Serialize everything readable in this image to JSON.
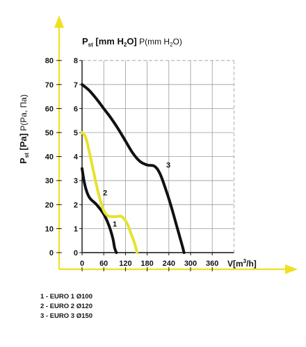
{
  "chart_data": {
    "type": "line",
    "title": "",
    "ylabel_left": "P st [Pa] P(Pa, Па)",
    "ylabel_right": "P st [mm H2O] P(mm H2O)",
    "xlabel": "V[m3/h]",
    "xlim": [
      0,
      420
    ],
    "ylim_pa": [
      0,
      80
    ],
    "ylim_mm": [
      0,
      8
    ],
    "x_ticks": [
      "0",
      "60",
      "120",
      "180",
      "240",
      "300",
      "360"
    ],
    "y_ticks_pa": [
      "0",
      "10",
      "20",
      "30",
      "40",
      "50",
      "60",
      "70",
      "80"
    ],
    "y_ticks_mm": [
      "0",
      "1",
      "2",
      "3",
      "4",
      "5",
      "6",
      "7",
      "8"
    ],
    "grid": true,
    "axis_color": "#f0e020",
    "series": [
      {
        "name": "1",
        "color": "#111111",
        "x": [
          0,
          8,
          20,
          40,
          60,
          75,
          85,
          90,
          95
        ],
        "y": [
          35,
          28,
          23,
          20,
          16,
          11,
          6,
          2,
          0
        ]
      },
      {
        "name": "2",
        "color": "#e6e22e",
        "x": [
          0,
          10,
          20,
          30,
          40,
          50,
          60,
          70,
          80,
          95,
          110,
          125,
          135,
          145,
          152
        ],
        "y": [
          50,
          48,
          42,
          35,
          28,
          22,
          17.5,
          15.5,
          15,
          15,
          15,
          12,
          8,
          4,
          0
        ]
      },
      {
        "name": "3",
        "color": "#111111",
        "x": [
          0,
          20,
          40,
          60,
          80,
          100,
          120,
          140,
          160,
          180,
          200,
          215,
          230,
          245,
          260,
          275,
          282
        ],
        "y": [
          70,
          67.5,
          64,
          60,
          56,
          51.5,
          46.5,
          41.5,
          38,
          36.5,
          36,
          33,
          27,
          20,
          12,
          4,
          0
        ]
      }
    ]
  },
  "legend": {
    "items": [
      "1 - EURO 1 Ø100",
      "2 - EURO 2 Ø120",
      "3 - EURO 3 Ø150"
    ]
  }
}
